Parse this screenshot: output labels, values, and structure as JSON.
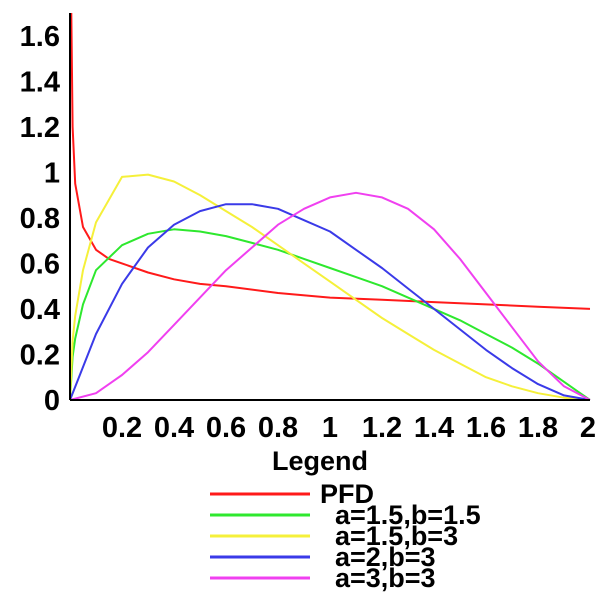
{
  "chart_data": {
    "type": "line",
    "title": "",
    "xlabel": "",
    "ylabel": "",
    "xlim": [
      0,
      2
    ],
    "ylim": [
      0,
      1.7
    ],
    "x_ticks": [
      0.2,
      0.4,
      0.6,
      0.8,
      1,
      1.2,
      1.4,
      1.6,
      1.8,
      2
    ],
    "x_tick_labels": [
      "0.2",
      "0.4",
      "0.6",
      "0.8",
      "1",
      "1.2",
      "1.4",
      "1.6",
      "1.8",
      "2"
    ],
    "y_ticks": [
      0,
      0.2,
      0.4,
      0.6,
      0.8,
      1,
      1.2,
      1.4,
      1.6
    ],
    "y_tick_labels": [
      "0",
      "0.2",
      "0.4",
      "0.6",
      "0.8",
      "1",
      "1.2",
      "1.4",
      "1.6"
    ],
    "grid": false,
    "legend_title": "Legend",
    "legend_placement": "bottom",
    "series": [
      {
        "name": "PFD",
        "color": "#ff1a1a",
        "x": [
          0.005,
          0.01,
          0.02,
          0.05,
          0.1,
          0.15,
          0.2,
          0.3,
          0.4,
          0.5,
          0.6,
          0.8,
          1.0,
          1.2,
          1.4,
          1.6,
          1.8,
          2.0
        ],
        "y": [
          1.7,
          1.2,
          0.95,
          0.76,
          0.66,
          0.62,
          0.6,
          0.56,
          0.53,
          0.51,
          0.5,
          0.47,
          0.45,
          0.44,
          0.43,
          0.42,
          0.41,
          0.4
        ]
      },
      {
        "name": "a=1.5,b=1.5",
        "color": "#2ee82e",
        "x": [
          0,
          0.01,
          0.02,
          0.05,
          0.1,
          0.2,
          0.3,
          0.4,
          0.5,
          0.6,
          0.7,
          0.8,
          0.9,
          1.0,
          1.1,
          1.2,
          1.3,
          1.4,
          1.5,
          1.6,
          1.7,
          1.8,
          1.9,
          1.95,
          2.0
        ],
        "y": [
          0,
          0.19,
          0.27,
          0.42,
          0.57,
          0.68,
          0.73,
          0.75,
          0.74,
          0.72,
          0.69,
          0.66,
          0.62,
          0.58,
          0.54,
          0.5,
          0.45,
          0.4,
          0.35,
          0.29,
          0.23,
          0.16,
          0.08,
          0.04,
          0
        ]
      },
      {
        "name": "a=1.5,b=3",
        "color": "#f5f03a",
        "x": [
          0,
          0.01,
          0.02,
          0.05,
          0.1,
          0.2,
          0.3,
          0.4,
          0.5,
          0.6,
          0.7,
          0.8,
          0.9,
          1.0,
          1.1,
          1.2,
          1.3,
          1.4,
          1.5,
          1.6,
          1.7,
          1.8,
          1.9,
          2.0
        ],
        "y": [
          0,
          0.26,
          0.37,
          0.57,
          0.78,
          0.98,
          0.99,
          0.96,
          0.9,
          0.83,
          0.76,
          0.68,
          0.6,
          0.52,
          0.44,
          0.36,
          0.29,
          0.22,
          0.16,
          0.1,
          0.06,
          0.03,
          0.01,
          0
        ]
      },
      {
        "name": "a=2,b=3",
        "color": "#3a3ae8",
        "x": [
          0,
          0.1,
          0.2,
          0.3,
          0.4,
          0.5,
          0.6,
          0.67,
          0.7,
          0.8,
          0.9,
          1.0,
          1.1,
          1.2,
          1.3,
          1.4,
          1.5,
          1.6,
          1.7,
          1.8,
          1.9,
          2.0
        ],
        "y": [
          0,
          0.29,
          0.51,
          0.67,
          0.77,
          0.83,
          0.86,
          0.86,
          0.86,
          0.84,
          0.79,
          0.74,
          0.66,
          0.58,
          0.49,
          0.4,
          0.31,
          0.22,
          0.14,
          0.07,
          0.02,
          0
        ]
      },
      {
        "name": "a=3,b=3",
        "color": "#f040f0",
        "x": [
          0,
          0.1,
          0.2,
          0.3,
          0.4,
          0.5,
          0.6,
          0.7,
          0.8,
          0.9,
          1.0,
          1.1,
          1.2,
          1.3,
          1.4,
          1.5,
          1.6,
          1.7,
          1.8,
          1.9,
          2.0
        ],
        "y": [
          0,
          0.03,
          0.11,
          0.21,
          0.33,
          0.45,
          0.57,
          0.67,
          0.77,
          0.84,
          0.89,
          0.91,
          0.89,
          0.84,
          0.75,
          0.62,
          0.47,
          0.32,
          0.17,
          0.06,
          0
        ]
      }
    ]
  }
}
